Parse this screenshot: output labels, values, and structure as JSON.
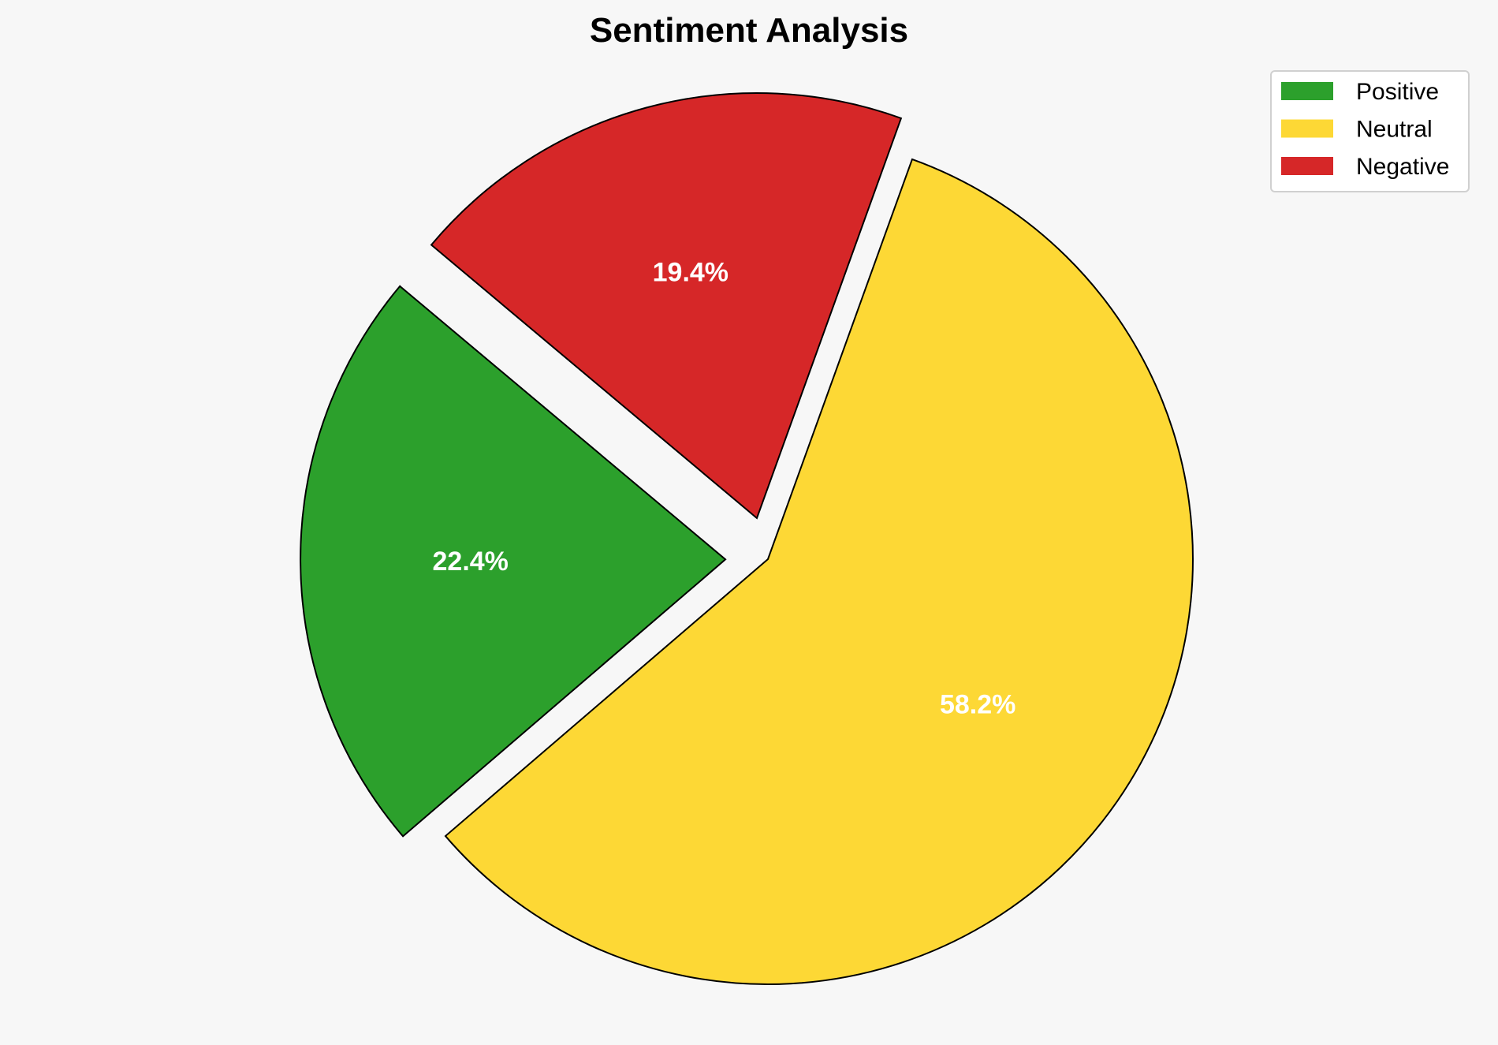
{
  "chart_data": {
    "type": "pie",
    "title": "Sentiment Analysis",
    "categories": [
      "Positive",
      "Neutral",
      "Negative"
    ],
    "values": [
      22.4,
      58.2,
      19.4
    ],
    "labels": [
      "22.4%",
      "58.2%",
      "19.4%"
    ],
    "colors": [
      "#2ca02c",
      "#fdd835",
      "#d62728"
    ],
    "explode": [
      0.1,
      0,
      0.1
    ],
    "startangle": 140,
    "legend_position": "top-right"
  }
}
